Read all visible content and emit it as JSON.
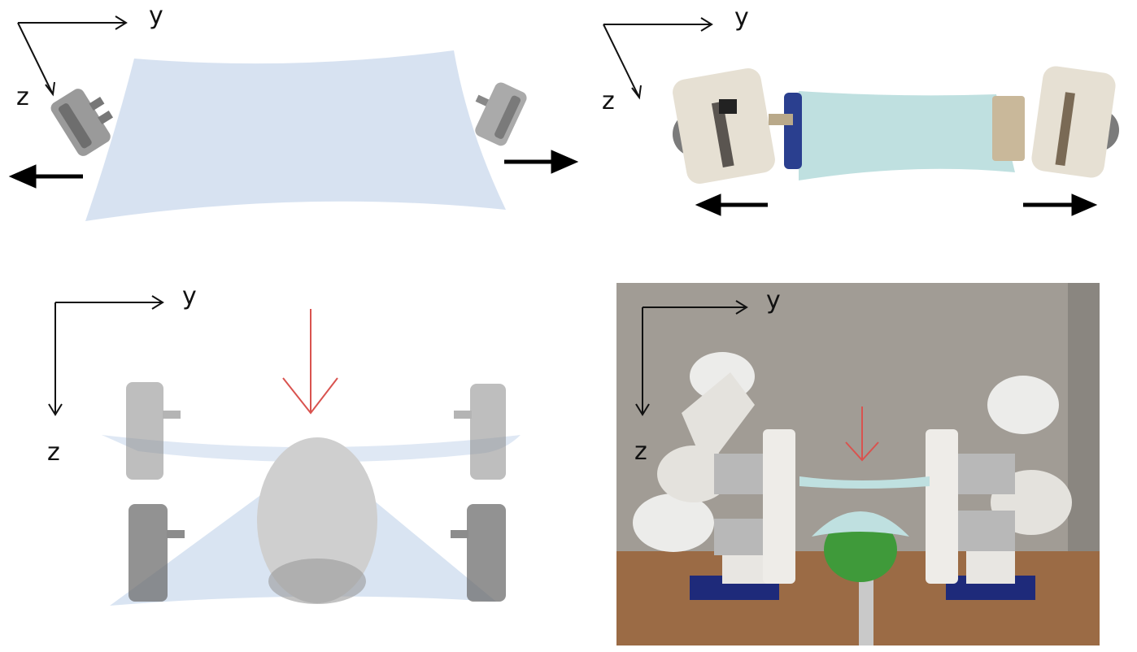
{
  "panels": {
    "top_left": {
      "y_label": "y",
      "z_label": "z"
    },
    "top_right": {
      "y_label": "y",
      "z_label": "z"
    },
    "bottom_left": {
      "y_label": "y",
      "z_label": "z"
    },
    "bottom_right": {
      "y_label": "y",
      "z_label": "z"
    }
  },
  "colors": {
    "cloth": "#c9d8ec",
    "cloth_real": "#bfe0e0",
    "force_arrow": "#000000",
    "press_arrow": "#d9534f",
    "gripper": "#8a8a8a",
    "egg": "#cfcfcf",
    "ball": "#3f9a3a",
    "wall": "#9a958e",
    "table": "#9b6b45"
  }
}
